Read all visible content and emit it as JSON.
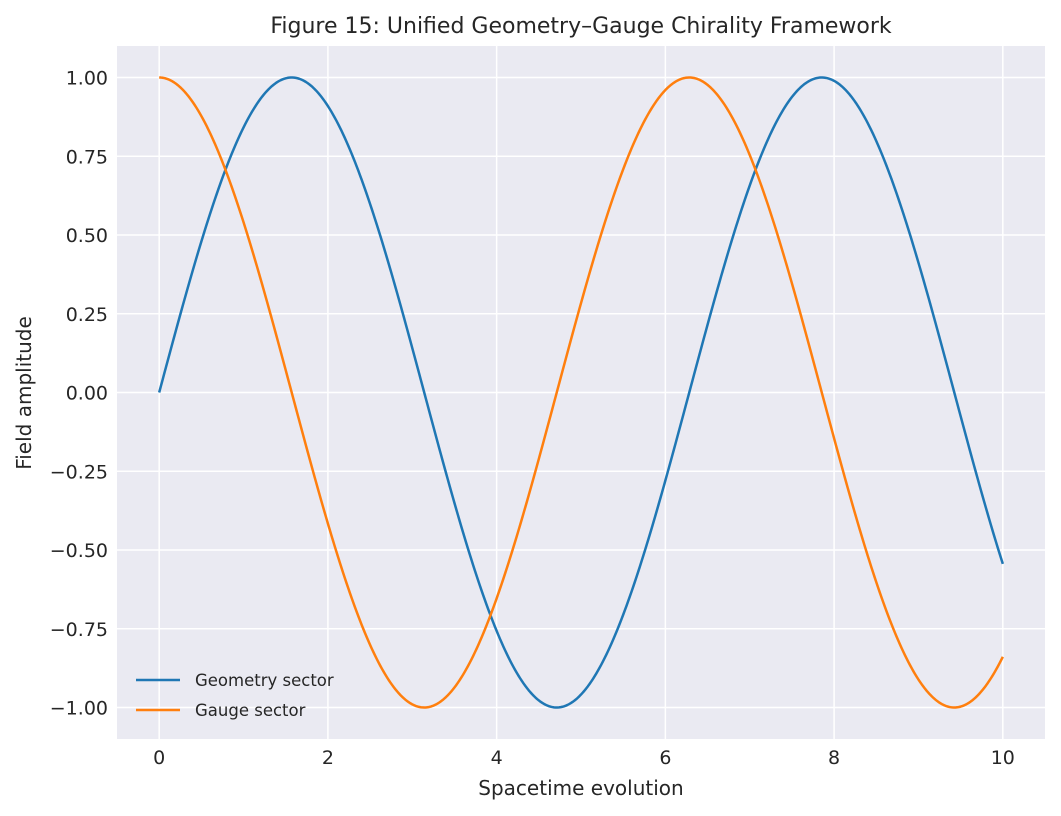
{
  "chart_data": {
    "type": "line",
    "title": "Figure 15: Unified Geometry–Gauge Chirality Framework",
    "xlabel": "Spacetime evolution",
    "ylabel": "Field amplitude",
    "xlim": [
      -0.5,
      10.5
    ],
    "ylim": [
      -1.1,
      1.1
    ],
    "x_range": [
      0,
      10
    ],
    "xticks": [
      0,
      2,
      4,
      6,
      8,
      10
    ],
    "xtick_labels": [
      "0",
      "2",
      "4",
      "6",
      "8",
      "10"
    ],
    "yticks": [
      1.0,
      0.75,
      0.5,
      0.25,
      0.0,
      -0.25,
      -0.5,
      -0.75,
      -1.0
    ],
    "ytick_labels": [
      "1.00",
      "0.75",
      "0.50",
      "0.25",
      "0.00",
      "−0.25",
      "−0.50",
      "−0.75",
      "−1.00"
    ],
    "grid": true,
    "legend_position": "lower-left",
    "background_color": "#eaeaf2",
    "grid_color": "#ffffff",
    "series": [
      {
        "name": "Geometry sector",
        "color": "#1f77b4",
        "function": "sin(x)"
      },
      {
        "name": "Gauge sector",
        "color": "#ff7f0e",
        "function": "cos(x)"
      }
    ]
  }
}
